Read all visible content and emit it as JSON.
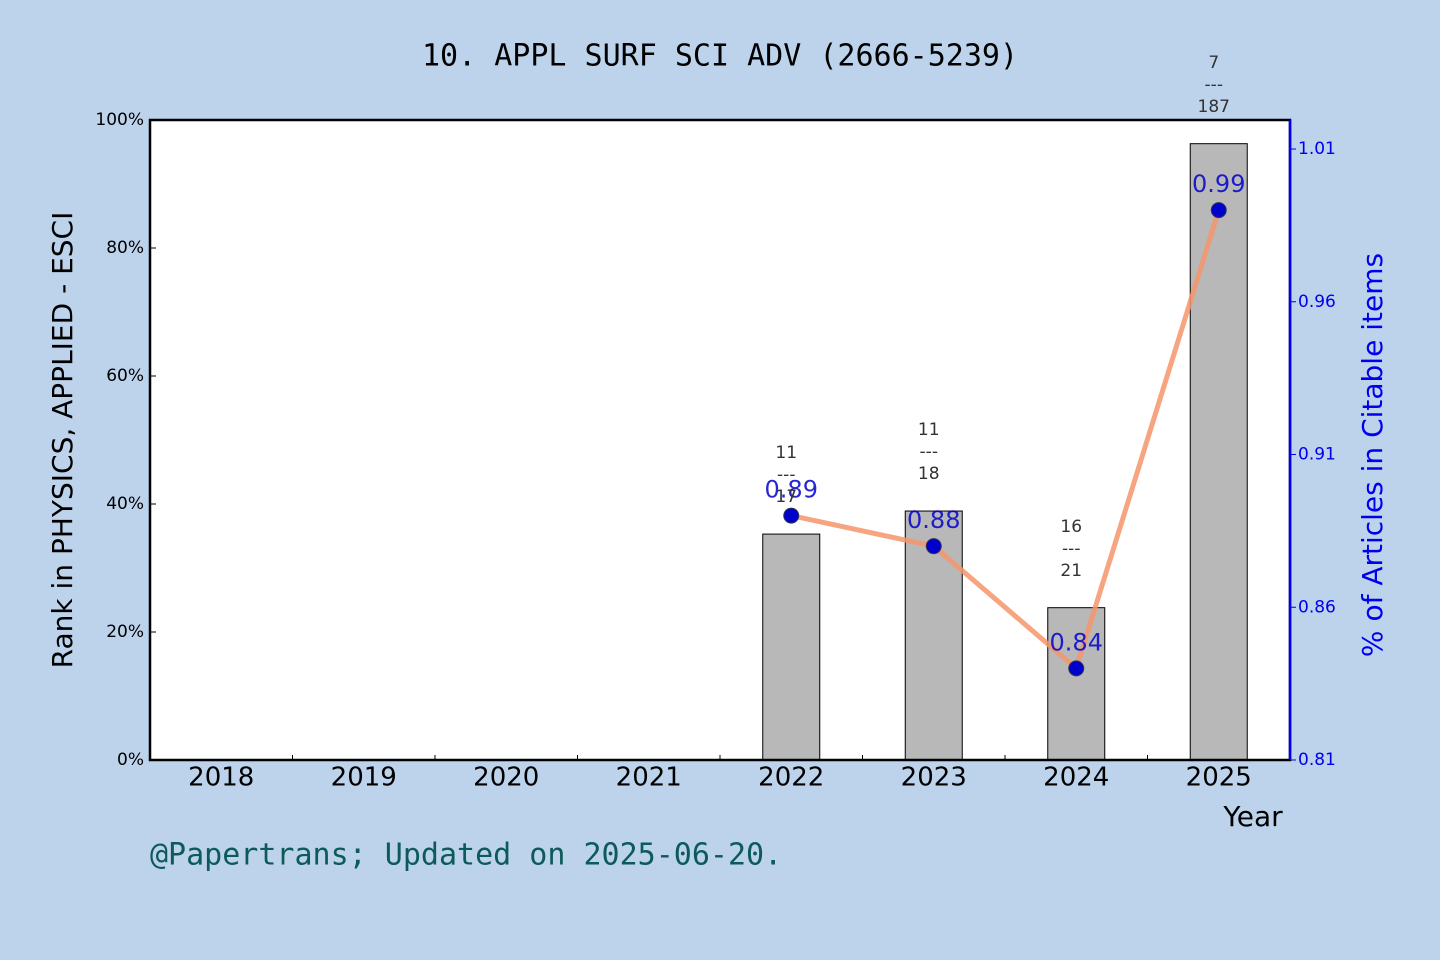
{
  "chart_data": {
    "type": "bar",
    "title": "10. APPL SURF SCI ADV (2666-5239)",
    "x_label": "Year",
    "y_label": "Rank in PHYSICS, APPLIED - ESCI",
    "y2_label": "% of Articles in Citable items",
    "footer": "@Papertrans; Updated on 2025-06-20.",
    "categories": [
      "2018",
      "2019",
      "2020",
      "2021",
      "2022",
      "2023",
      "2024",
      "2025"
    ],
    "series": [
      {
        "type": "bar",
        "color": "#b8b8b8",
        "values": [
          null,
          null,
          null,
          null,
          35.3,
          38.9,
          23.8,
          96.3
        ],
        "value_labels": [
          null,
          null,
          null,
          null,
          "11\n---\n17",
          "11\n---\n18",
          "16\n---\n21",
          "7\n---\n187"
        ]
      },
      {
        "type": "line",
        "axis": "y2",
        "color": "#f4956a",
        "marker_color": "#0000cc",
        "values": [
          null,
          null,
          null,
          null,
          0.89,
          0.88,
          0.84,
          0.99
        ]
      }
    ],
    "ylim": [
      0,
      100
    ],
    "yticks": [
      {
        "value": 0,
        "label": "0%"
      },
      {
        "value": 20,
        "label": "20%"
      },
      {
        "value": 40,
        "label": "40%"
      },
      {
        "value": 60,
        "label": "60%"
      },
      {
        "value": 80,
        "label": "80%"
      },
      {
        "value": 100,
        "label": "100%"
      }
    ],
    "y2lim": [
      0.81,
      1.0195
    ],
    "y2ticks": [
      0.81,
      0.86,
      0.91,
      0.96,
      1.01
    ],
    "y2_color": "#0000ee"
  }
}
